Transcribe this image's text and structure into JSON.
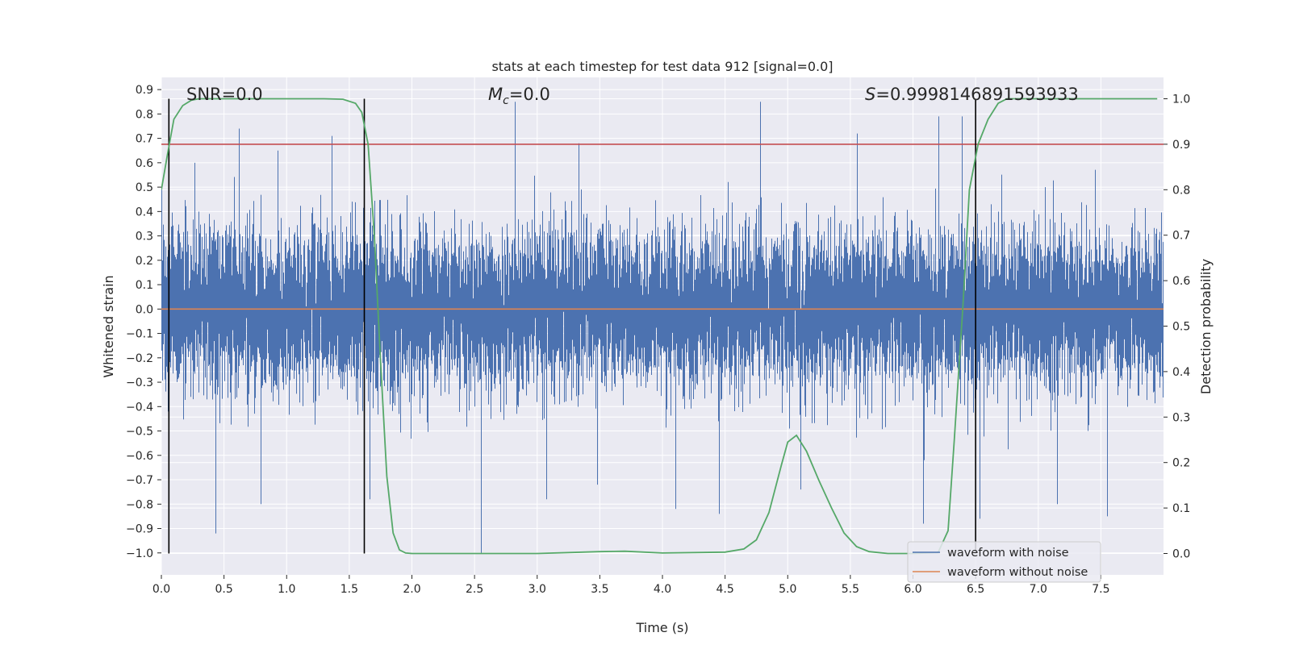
{
  "chart_data": {
    "type": "line",
    "title": "stats at each timestep for test data 912 [signal=0.0]",
    "xlabel": "Time (s)",
    "ylabel": "Whitened strain",
    "y2label": "Detection probability",
    "xlim": [
      0.0,
      8.0
    ],
    "ylim": [
      -1.09,
      0.95
    ],
    "y2lim": [
      -0.047,
      1.047
    ],
    "x_ticks": [
      0.0,
      0.5,
      1.0,
      1.5,
      2.0,
      2.5,
      3.0,
      3.5,
      4.0,
      4.5,
      5.0,
      5.5,
      6.0,
      6.5,
      7.0,
      7.5
    ],
    "x_tick_labels": [
      "0.0",
      "0.5",
      "1.0",
      "1.5",
      "2.0",
      "2.5",
      "3.0",
      "3.5",
      "4.0",
      "4.5",
      "5.0",
      "5.5",
      "6.0",
      "6.5",
      "7.0",
      "7.5"
    ],
    "y_ticks": [
      0.9,
      0.8,
      0.7,
      0.6,
      0.5,
      0.4,
      0.3,
      0.2,
      0.1,
      0.0,
      -0.1,
      -0.2,
      -0.3,
      -0.4,
      -0.5,
      -0.6,
      -0.7,
      -0.8,
      -0.9,
      -1.0
    ],
    "y_tick_labels": [
      "0.9",
      "0.8",
      "0.7",
      "0.6",
      "0.5",
      "0.4",
      "0.3",
      "0.2",
      "0.1",
      "0.0",
      "−0.1",
      "−0.2",
      "−0.3",
      "−0.4",
      "−0.5",
      "−0.6",
      "−0.7",
      "−0.8",
      "−0.9",
      "−1.0"
    ],
    "y2_ticks": [
      1.0,
      0.9,
      0.8,
      0.7,
      0.6,
      0.5,
      0.4,
      0.3,
      0.2,
      0.1,
      0.0
    ],
    "y2_tick_labels": [
      "1.0",
      "0.9",
      "0.8",
      "0.7",
      "0.6",
      "0.5",
      "0.4",
      "0.3",
      "0.2",
      "0.1",
      "0.0"
    ],
    "grid": true,
    "background": "#eaeaf2",
    "annotations": {
      "snr": "SNR=0.0",
      "mc_symbol": "M",
      "mc_subscript": "c",
      "mc_value": "=0.0",
      "s_symbol": "S",
      "s_value": "=0.9998146891593933"
    },
    "series": [
      {
        "name": "waveform with noise",
        "color": "#4c72b0",
        "kind": "noise",
        "seed": 912,
        "peak_events": [
          {
            "x": 0.43,
            "y": -0.92
          },
          {
            "x": 0.62,
            "y": 0.74
          },
          {
            "x": 0.79,
            "y": -0.8
          },
          {
            "x": 0.93,
            "y": 0.65
          },
          {
            "x": 1.36,
            "y": 0.71
          },
          {
            "x": 1.66,
            "y": -0.78
          },
          {
            "x": 2.55,
            "y": -1.0
          },
          {
            "x": 2.82,
            "y": 0.85
          },
          {
            "x": 3.07,
            "y": -0.78
          },
          {
            "x": 3.33,
            "y": 0.68
          },
          {
            "x": 3.48,
            "y": -0.72
          },
          {
            "x": 4.1,
            "y": -0.82
          },
          {
            "x": 4.45,
            "y": -0.84
          },
          {
            "x": 4.78,
            "y": 0.85
          },
          {
            "x": 5.1,
            "y": -0.74
          },
          {
            "x": 5.55,
            "y": 0.72
          },
          {
            "x": 6.08,
            "y": -0.88
          },
          {
            "x": 6.2,
            "y": 0.79
          },
          {
            "x": 6.39,
            "y": 0.79
          },
          {
            "x": 6.53,
            "y": -0.86
          },
          {
            "x": 7.15,
            "y": -0.8
          },
          {
            "x": 7.55,
            "y": -0.85
          }
        ]
      },
      {
        "name": "waveform without noise",
        "color": "#dd8452",
        "x": [
          0.0,
          8.0
        ],
        "y": [
          0.0,
          0.0
        ]
      },
      {
        "name": "Detection probability",
        "color": "#55a868",
        "axis": "right",
        "x": [
          0.0,
          0.05,
          0.1,
          0.17,
          0.24,
          0.3,
          0.4,
          0.6,
          1.0,
          1.3,
          1.45,
          1.55,
          1.6,
          1.65,
          1.7,
          1.75,
          1.8,
          1.85,
          1.9,
          1.95,
          2.0,
          2.2,
          3.0,
          3.5,
          3.7,
          4.0,
          4.5,
          4.65,
          4.75,
          4.85,
          4.95,
          5.0,
          5.07,
          5.15,
          5.25,
          5.35,
          5.45,
          5.55,
          5.65,
          5.8,
          6.0,
          6.2,
          6.28,
          6.33,
          6.4,
          6.45,
          6.52,
          6.6,
          6.68,
          6.75,
          6.85,
          7.0,
          7.5,
          7.95
        ],
        "y": [
          0.8,
          0.88,
          0.955,
          0.985,
          0.997,
          1.0,
          1.0,
          1.0,
          1.0,
          1.0,
          0.999,
          0.99,
          0.97,
          0.9,
          0.7,
          0.42,
          0.17,
          0.045,
          0.008,
          0.001,
          0.0,
          0.0,
          0.0,
          0.004,
          0.005,
          0.001,
          0.003,
          0.01,
          0.03,
          0.09,
          0.195,
          0.245,
          0.26,
          0.225,
          0.16,
          0.1,
          0.045,
          0.015,
          0.004,
          0.0,
          0.0,
          0.002,
          0.05,
          0.25,
          0.55,
          0.8,
          0.9,
          0.955,
          0.99,
          1.0,
          1.0,
          1.0,
          1.0,
          1.0
        ]
      }
    ],
    "threshold_line": {
      "y": 0.9,
      "axis": "right",
      "color": "#c44e52"
    },
    "vertical_markers": [
      0.06,
      1.62,
      6.5
    ],
    "vertical_marker_range": [
      0.0,
      1.0
    ],
    "legend": {
      "placement": "lower-right",
      "entries": [
        {
          "label": "waveform with noise",
          "color": "#4c72b0"
        },
        {
          "label": "waveform without noise",
          "color": "#dd8452"
        }
      ]
    }
  }
}
